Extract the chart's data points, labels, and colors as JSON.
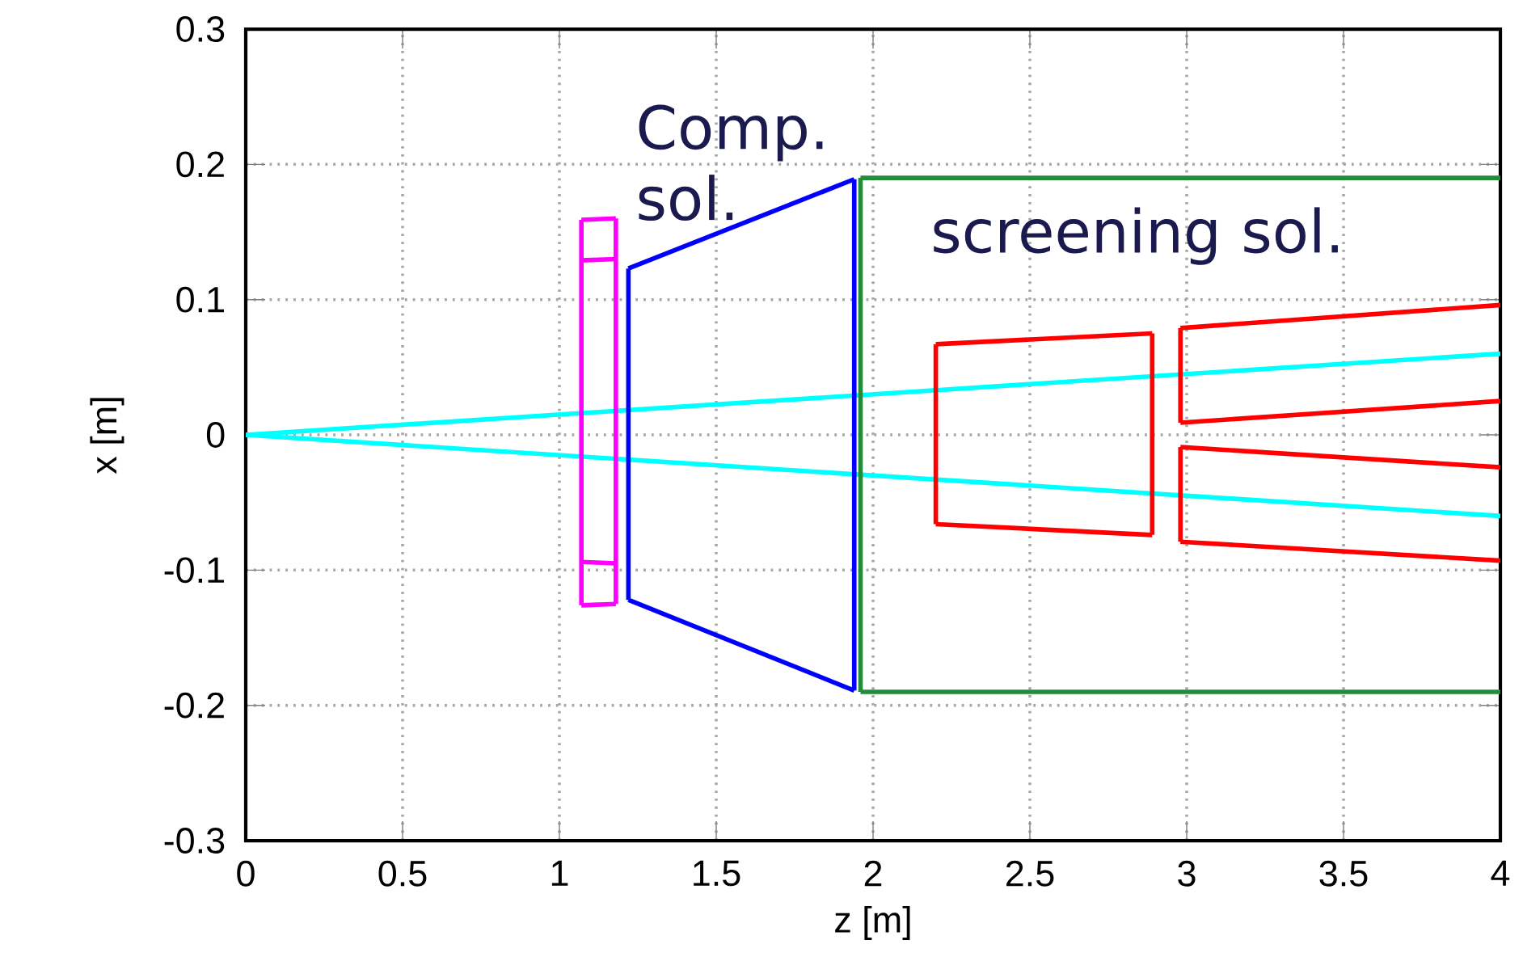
{
  "chart_data": {
    "type": "line",
    "xlabel": "z [m]",
    "ylabel": "x [m]",
    "xlim": [
      0,
      4
    ],
    "ylim": [
      -0.3,
      0.3
    ],
    "xticks": [
      0,
      0.5,
      1,
      1.5,
      2,
      2.5,
      3,
      3.5,
      4
    ],
    "yticks": [
      -0.3,
      -0.2,
      -0.1,
      0,
      0.1,
      0.2,
      0.3
    ],
    "grid": true,
    "annotations": [
      "Comp. sol.",
      "screening sol."
    ],
    "series": [
      {
        "color": "#00ffff",
        "x": [
          0,
          4
        ],
        "values": [
          0,
          0.06
        ]
      },
      {
        "color": "#00ffff",
        "x": [
          0,
          4
        ],
        "values": [
          0,
          -0.06
        ]
      },
      {
        "color": "#ff00ff",
        "x": [
          1.07,
          1.18
        ],
        "values": [
          0.159,
          0.16
        ]
      },
      {
        "color": "#ff00ff",
        "x": [
          1.07,
          1.18
        ],
        "values": [
          0.129,
          0.13
        ]
      },
      {
        "color": "#ff00ff",
        "x": [
          1.07,
          1.18
        ],
        "values": [
          -0.094,
          -0.095
        ]
      },
      {
        "color": "#ff00ff",
        "x": [
          1.07,
          1.18
        ],
        "values": [
          -0.126,
          -0.125
        ]
      },
      {
        "color": "#ff00ff",
        "x": [
          1.07,
          1.07
        ],
        "values": [
          0.159,
          -0.126
        ]
      },
      {
        "color": "#ff00ff",
        "x": [
          1.18,
          1.18
        ],
        "values": [
          0.16,
          -0.125
        ]
      },
      {
        "color": "#0000ff",
        "x": [
          1.22,
          1.94
        ],
        "values": [
          0.123,
          0.189
        ]
      },
      {
        "color": "#0000ff",
        "x": [
          1.22,
          1.94
        ],
        "values": [
          -0.122,
          -0.189
        ]
      },
      {
        "color": "#0000ff",
        "x": [
          1.22,
          1.22
        ],
        "values": [
          0.123,
          -0.122
        ]
      },
      {
        "color": "#0000ff",
        "x": [
          1.94,
          1.94
        ],
        "values": [
          0.189,
          -0.189
        ]
      },
      {
        "color": "#228b3c",
        "x": [
          1.96,
          4
        ],
        "values": [
          0.19,
          0.19
        ]
      },
      {
        "color": "#228b3c",
        "x": [
          1.96,
          4
        ],
        "values": [
          -0.19,
          -0.19
        ]
      },
      {
        "color": "#228b3c",
        "x": [
          1.96,
          1.96
        ],
        "values": [
          0.19,
          -0.19
        ]
      },
      {
        "color": "#ff0000",
        "x": [
          2.2,
          2.89
        ],
        "values": [
          0.067,
          0.075
        ]
      },
      {
        "color": "#ff0000",
        "x": [
          2.2,
          2.89
        ],
        "values": [
          -0.066,
          -0.074
        ]
      },
      {
        "color": "#ff0000",
        "x": [
          2.2,
          2.2
        ],
        "values": [
          0.067,
          -0.066
        ]
      },
      {
        "color": "#ff0000",
        "x": [
          2.89,
          2.89
        ],
        "values": [
          0.075,
          -0.074
        ]
      },
      {
        "color": "#ff0000",
        "x": [
          2.98,
          4
        ],
        "values": [
          0.079,
          0.096
        ]
      },
      {
        "color": "#ff0000",
        "x": [
          2.98,
          4
        ],
        "values": [
          0.009,
          0.025
        ]
      },
      {
        "color": "#ff0000",
        "x": [
          2.98,
          2.98
        ],
        "values": [
          0.079,
          0.009
        ]
      },
      {
        "color": "#ff0000",
        "x": [
          2.98,
          4
        ],
        "values": [
          -0.009,
          -0.024
        ]
      },
      {
        "color": "#ff0000",
        "x": [
          2.98,
          4
        ],
        "values": [
          -0.079,
          -0.093
        ]
      },
      {
        "color": "#ff0000",
        "x": [
          2.98,
          2.98
        ],
        "values": [
          -0.009,
          -0.079
        ]
      }
    ]
  }
}
